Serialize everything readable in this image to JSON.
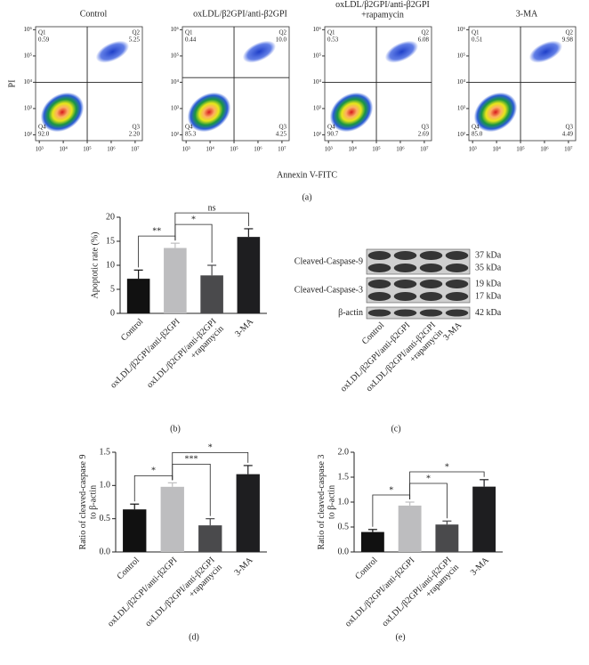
{
  "chart_data": [
    {
      "type": "scatter",
      "panel": "(a)",
      "title": "Control",
      "xlabel": "Annexin V-FITC",
      "ylabel": "PI",
      "log_x": true,
      "log_y": true,
      "xlim": [
        700,
        20000000
      ],
      "ylim": [
        60,
        1300000
      ],
      "xticks": [
        {
          "value": 1000,
          "label": "10³"
        },
        {
          "value": 10000,
          "label": "10⁴"
        },
        {
          "value": 100000,
          "label": "10⁵"
        },
        {
          "value": 1000000,
          "label": "10⁶"
        },
        {
          "value": 10000000,
          "label": "10⁷"
        }
      ],
      "yticks": [
        {
          "value": 100,
          "label": "10²"
        },
        {
          "value": 1000,
          "label": "10³"
        },
        {
          "value": 10000,
          "label": "10⁴"
        },
        {
          "value": 100000,
          "label": "10⁵"
        },
        {
          "value": 1000000,
          "label": "10⁶"
        }
      ],
      "gate_x": 100000,
      "gate_y": 10000,
      "quadrants": [
        "Q1",
        "Q2",
        "Q3",
        "Q4"
      ],
      "values": [
        0.59,
        5.25,
        2.2,
        92.0
      ],
      "value_labels": [
        "0.59",
        "5.25",
        "2.20",
        "92.0"
      ]
    },
    {
      "type": "scatter",
      "title": "oxLDL/β2GPI/anti-β2GPI",
      "log_x": true,
      "log_y": true,
      "xlim": [
        700,
        20000000
      ],
      "ylim": [
        60,
        1300000
      ],
      "xticks": [
        {
          "value": 1000,
          "label": "10³"
        },
        {
          "value": 10000,
          "label": "10⁴"
        },
        {
          "value": 100000,
          "label": "10⁵"
        },
        {
          "value": 1000000,
          "label": "10⁶"
        },
        {
          "value": 10000000,
          "label": "10⁷"
        }
      ],
      "yticks": [
        {
          "value": 100,
          "label": "10²"
        },
        {
          "value": 1000,
          "label": "10³"
        },
        {
          "value": 10000,
          "label": "10⁴"
        },
        {
          "value": 100000,
          "label": "10⁵"
        },
        {
          "value": 1000000,
          "label": "10⁶"
        }
      ],
      "gate_x": 100000,
      "gate_y": 15000,
      "quadrants": [
        "Q1",
        "Q2",
        "Q3",
        "Q4"
      ],
      "values": [
        0.44,
        10.0,
        4.25,
        85.3
      ],
      "value_labels": [
        "0.44",
        "10.0",
        "4.25",
        "85.3"
      ]
    },
    {
      "type": "scatter",
      "title": "oxLDL/β2GPI/anti-β2GPI\n+rapamycin",
      "log_x": true,
      "log_y": true,
      "xlim": [
        700,
        20000000
      ],
      "ylim": [
        60,
        1300000
      ],
      "xticks": [
        {
          "value": 1000,
          "label": "10³"
        },
        {
          "value": 10000,
          "label": "10⁴"
        },
        {
          "value": 100000,
          "label": "10⁵"
        },
        {
          "value": 1000000,
          "label": "10⁶"
        },
        {
          "value": 10000000,
          "label": "10⁷"
        }
      ],
      "yticks": [
        {
          "value": 100,
          "label": "10²"
        },
        {
          "value": 1000,
          "label": "10³"
        },
        {
          "value": 10000,
          "label": "10⁴"
        },
        {
          "value": 100000,
          "label": "10⁵"
        },
        {
          "value": 1000000,
          "label": "10⁶"
        }
      ],
      "gate_x": 100000,
      "gate_y": 10000,
      "quadrants": [
        "Q1",
        "Q2",
        "Q3",
        "Q4"
      ],
      "values": [
        0.53,
        6.08,
        2.69,
        90.7
      ],
      "value_labels": [
        "0.53",
        "6.08",
        "2.69",
        "90.7"
      ]
    },
    {
      "type": "scatter",
      "title": "3-MA",
      "log_x": true,
      "log_y": true,
      "xlim": [
        700,
        20000000
      ],
      "ylim": [
        60,
        1300000
      ],
      "xticks": [
        {
          "value": 1000,
          "label": "10³"
        },
        {
          "value": 10000,
          "label": "10⁴"
        },
        {
          "value": 100000,
          "label": "10⁵"
        },
        {
          "value": 1000000,
          "label": "10⁶"
        },
        {
          "value": 10000000,
          "label": "10⁷"
        }
      ],
      "yticks": [
        {
          "value": 100,
          "label": "10²"
        },
        {
          "value": 1000,
          "label": "10³"
        },
        {
          "value": 10000,
          "label": "10⁴"
        },
        {
          "value": 100000,
          "label": "10⁵"
        },
        {
          "value": 1000000,
          "label": "10⁶"
        }
      ],
      "gate_x": 100000,
      "gate_y": 10000,
      "quadrants": [
        "Q1",
        "Q2",
        "Q3",
        "Q4"
      ],
      "values": [
        0.51,
        9.98,
        4.49,
        85.0
      ],
      "value_labels": [
        "0.51",
        "9.98",
        "4.49",
        "85.0"
      ]
    },
    {
      "type": "bar",
      "panel": "(b)",
      "ylabel": "Apoptotic rate (%)",
      "categories": [
        "Control",
        "oxLDL/β2GPI/anti-β2GPI",
        "oxLDL/β2GPI/anti-β2GPI\n+rapamycin",
        "3-MA"
      ],
      "values": [
        7.2,
        13.6,
        7.9,
        15.9
      ],
      "errors": [
        1.8,
        1.0,
        2.1,
        1.7
      ],
      "colors": [
        "#111111",
        "#bdbdbf",
        "#4a4a4c",
        "#1e1e20"
      ],
      "ylim": [
        0,
        20
      ],
      "yticks": [
        0,
        5,
        10,
        15,
        20
      ],
      "comparisons": [
        {
          "label": "**",
          "pair": [
            0,
            1
          ]
        },
        {
          "label": "*",
          "pair": [
            1,
            2
          ]
        },
        {
          "label": "ns",
          "pair": [
            1,
            3
          ]
        }
      ]
    },
    {
      "type": "blot",
      "panel": "(c)",
      "categories": [
        "Control",
        "oxLDL/β2GPI/anti-β2GPI",
        "oxLDL/β2GPI/anti-β2GPI\n+rapamycin",
        "3-MA"
      ],
      "rows": [
        {
          "label": "Cleaved-Caspase-9",
          "sizes": [
            "37 kDa",
            "35 kDa"
          ]
        },
        {
          "label": "Cleaved-Caspase-3",
          "sizes": [
            "19 kDa",
            "17 kDa"
          ]
        },
        {
          "label": "β-actin",
          "sizes": [
            "42 kDa"
          ]
        }
      ]
    },
    {
      "type": "bar",
      "panel": "(d)",
      "ylabel": "Ratio of cleaved-caspase 9\nto β-actin",
      "categories": [
        "Control",
        "oxLDL/β2GPI/anti-β2GPI",
        "oxLDL/β2GPI/anti-β2GPI\n+rapamycin",
        "3-MA"
      ],
      "values": [
        0.64,
        0.98,
        0.4,
        1.17
      ],
      "errors": [
        0.08,
        0.06,
        0.1,
        0.13
      ],
      "colors": [
        "#111111",
        "#bdbdbf",
        "#4a4a4c",
        "#1e1e20"
      ],
      "ylim": [
        0,
        1.5
      ],
      "yticks": [
        {
          "value": 0,
          "label": "0.0"
        },
        0.5,
        {
          "value": 1,
          "label": "1.0"
        },
        1.5
      ],
      "comparisons": [
        {
          "label": "*",
          "pair": [
            0,
            1
          ]
        },
        {
          "label": "***",
          "pair": [
            1,
            2
          ]
        },
        {
          "label": "*",
          "pair": [
            1,
            3
          ]
        }
      ]
    },
    {
      "type": "bar",
      "panel": "(e)",
      "ylabel": "Ratio of cleaved-caspase 3\nto β-actin",
      "categories": [
        "Control",
        "oxLDL/β2GPI/anti-β2GPI",
        "oxLDL/β2GPI/anti-β2GPI\n+rapamycin",
        "3-MA"
      ],
      "values": [
        0.4,
        0.93,
        0.55,
        1.31
      ],
      "errors": [
        0.05,
        0.07,
        0.07,
        0.14
      ],
      "colors": [
        "#111111",
        "#bdbdbf",
        "#4a4a4c",
        "#1e1e20"
      ],
      "ylim": [
        0,
        2
      ],
      "yticks": [
        {
          "value": 0,
          "label": "0.0"
        },
        0.5,
        {
          "value": 1,
          "label": "1.0"
        },
        1.5,
        {
          "value": 2,
          "label": "2.0"
        }
      ],
      "comparisons": [
        {
          "label": "*",
          "pair": [
            0,
            1
          ]
        },
        {
          "label": "*",
          "pair": [
            1,
            2
          ]
        },
        {
          "label": "*",
          "pair": [
            1,
            3
          ]
        }
      ]
    }
  ]
}
